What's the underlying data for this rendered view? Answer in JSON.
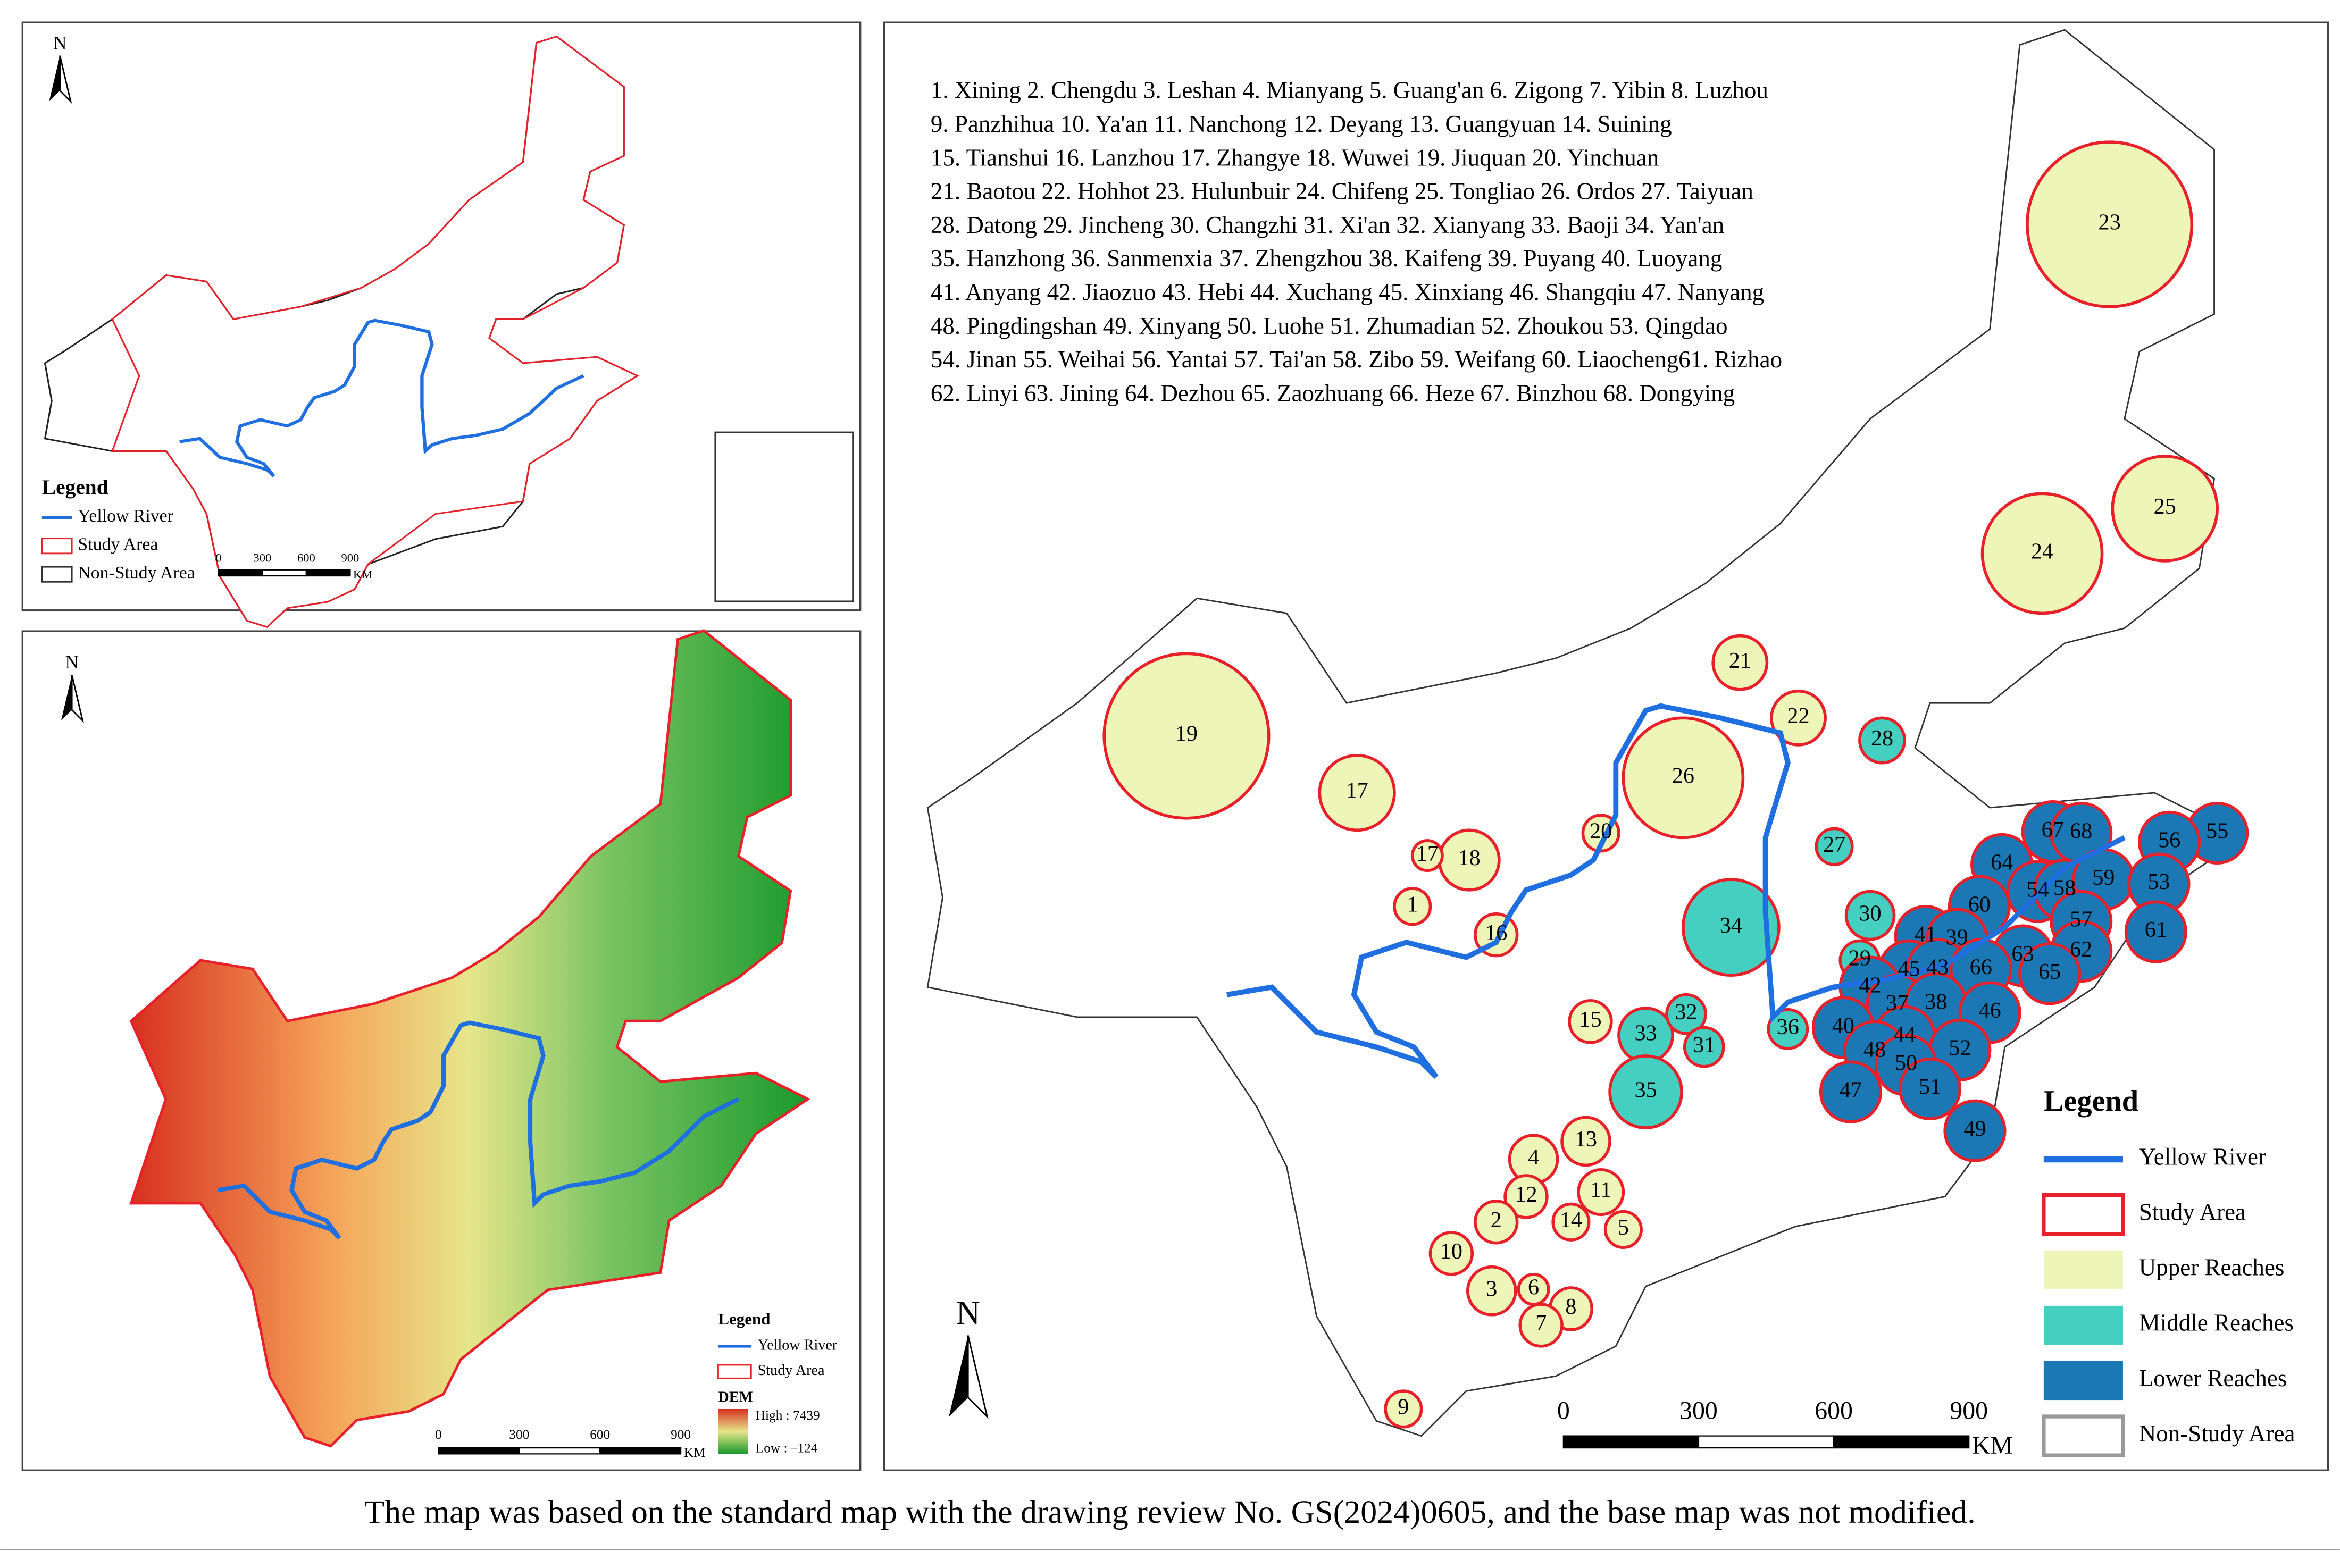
{
  "caption": "The map was based on the standard map with the drawing review No. GS(2024)0605, and the base map was not modified.",
  "overview": {
    "north": "N",
    "legend": {
      "title": "Legend",
      "items": [
        {
          "label": "Yellow River",
          "symbol": "line",
          "color": "#1f6fe0"
        },
        {
          "label": "Study Area",
          "symbol": "outline",
          "color": "#e8202a"
        },
        {
          "label": "Non-Study Area",
          "symbol": "outline",
          "color": "#333333"
        }
      ]
    },
    "scale": {
      "ticks": [
        0,
        300,
        600,
        900
      ],
      "unit": "KM"
    }
  },
  "dem": {
    "north": "N",
    "legend": {
      "title": "Legend",
      "items": [
        {
          "label": "Yellow River",
          "symbol": "line",
          "color": "#1f6fe0"
        },
        {
          "label": "Study Area",
          "symbol": "outline",
          "color": "#e8202a"
        }
      ]
    },
    "dem_legend": {
      "title": "DEM",
      "high": "High : 7439",
      "low": "Low : –124"
    },
    "scale": {
      "ticks": [
        0,
        300,
        600,
        900
      ],
      "unit": "KM"
    }
  },
  "reaches": {
    "north": "N",
    "city_list": [
      "1. Xining 2. Chengdu 3. Leshan 4. Mianyang 5. Guang'an 6. Zigong 7. Yibin 8. Luzhou",
      "9. Panzhihua 10. Ya'an 11. Nanchong 12. Deyang 13. Guangyuan 14. Suining",
      "15. Tianshui  16. Lanzhou 17. Zhangye 18. Wuwei 19. Jiuquan 20. Yinchuan",
      "21. Baotou 22. Hohhot 23. Hulunbuir 24. Chifeng 25. Tongliao 26. Ordos 27. Taiyuan",
      "28. Datong 29. Jincheng 30. Changzhi 31. Xi'an 32. Xianyang 33. Baoji 34. Yan'an",
      "35. Hanzhong  36. Sanmenxia 37. Zhengzhou 38. Kaifeng 39. Puyang 40. Luoyang",
      "41. Anyang 42. Jiaozuo 43. Hebi 44. Xuchang 45. Xinxiang 46. Shangqiu 47. Nanyang",
      "48. Pingdingshan 49. Xinyang 50. Luohe 51. Zhumadian 52. Zhoukou 53. Qingdao",
      "54. Jinan 55. Weihai 56. Yantai 57. Tai'an 58. Zibo 59. Weifang 60. Liaocheng61. Rizhao",
      "62. Linyi 63. Jining 64. Dezhou 65. Zaozhuang 66. Heze 67. Binzhou 68. Dongying"
    ],
    "legend": {
      "title": "Legend",
      "items": [
        {
          "label": "Yellow River",
          "symbol": "line",
          "color": "#1f6fe0"
        },
        {
          "label": "Study Area",
          "symbol": "outline",
          "color": "#e8202a"
        },
        {
          "label": "Upper Reaches",
          "symbol": "fill",
          "color": "#eef5b8"
        },
        {
          "label": "Middle Reaches",
          "symbol": "fill",
          "color": "#45cfc1"
        },
        {
          "label": "Lower Reaches",
          "symbol": "fill",
          "color": "#1b78b5"
        },
        {
          "label": "Non-Study Area",
          "symbol": "outline",
          "color": "#999999"
        }
      ]
    },
    "scale": {
      "ticks": [
        0,
        300,
        600,
        900
      ],
      "unit": "KM"
    },
    "regions": [
      {
        "label": "23",
        "color": "#eef5b8"
      },
      {
        "label": "24",
        "color": "#eef5b8"
      },
      {
        "label": "25",
        "color": "#eef5b8"
      },
      {
        "label": "19",
        "color": "#eef5b8"
      },
      {
        "label": "17",
        "color": "#eef5b8"
      },
      {
        "label": "21",
        "color": "#eef5b8"
      },
      {
        "label": "22",
        "color": "#eef5b8"
      },
      {
        "label": "26",
        "color": "#eef5b8"
      },
      {
        "label": "20",
        "color": "#eef5b8"
      },
      {
        "label": "18",
        "color": "#eef5b8"
      },
      {
        "label": "17",
        "color": "#eef5b8"
      },
      {
        "label": "1",
        "color": "#eef5b8"
      },
      {
        "label": "16",
        "color": "#eef5b8"
      },
      {
        "label": "15",
        "color": "#eef5b8"
      },
      {
        "label": "13",
        "color": "#eef5b8"
      },
      {
        "label": "4",
        "color": "#eef5b8"
      },
      {
        "label": "11",
        "color": "#eef5b8"
      },
      {
        "label": "12",
        "color": "#eef5b8"
      },
      {
        "label": "2",
        "color": "#eef5b8"
      },
      {
        "label": "14",
        "color": "#eef5b8"
      },
      {
        "label": "5",
        "color": "#eef5b8"
      },
      {
        "label": "10",
        "color": "#eef5b8"
      },
      {
        "label": "3",
        "color": "#eef5b8"
      },
      {
        "label": "6",
        "color": "#eef5b8"
      },
      {
        "label": "8",
        "color": "#eef5b8"
      },
      {
        "label": "7",
        "color": "#eef5b8"
      },
      {
        "label": "9",
        "color": "#eef5b8"
      },
      {
        "label": "28",
        "color": "#45cfc1"
      },
      {
        "label": "27",
        "color": "#45cfc1"
      },
      {
        "label": "34",
        "color": "#45cfc1"
      },
      {
        "label": "30",
        "color": "#45cfc1"
      },
      {
        "label": "29",
        "color": "#45cfc1"
      },
      {
        "label": "33",
        "color": "#45cfc1"
      },
      {
        "label": "32",
        "color": "#45cfc1"
      },
      {
        "label": "31",
        "color": "#45cfc1"
      },
      {
        "label": "36",
        "color": "#45cfc1"
      },
      {
        "label": "35",
        "color": "#45cfc1"
      },
      {
        "label": "67",
        "color": "#1b78b5"
      },
      {
        "label": "68",
        "color": "#1b78b5"
      },
      {
        "label": "55",
        "color": "#1b78b5"
      },
      {
        "label": "56",
        "color": "#1b78b5"
      },
      {
        "label": "64",
        "color": "#1b78b5"
      },
      {
        "label": "54",
        "color": "#1b78b5"
      },
      {
        "label": "58",
        "color": "#1b78b5"
      },
      {
        "label": "59",
        "color": "#1b78b5"
      },
      {
        "label": "53",
        "color": "#1b78b5"
      },
      {
        "label": "60",
        "color": "#1b78b5"
      },
      {
        "label": "57",
        "color": "#1b78b5"
      },
      {
        "label": "41",
        "color": "#1b78b5"
      },
      {
        "label": "39",
        "color": "#1b78b5"
      },
      {
        "label": "61",
        "color": "#1b78b5"
      },
      {
        "label": "63",
        "color": "#1b78b5"
      },
      {
        "label": "62",
        "color": "#1b78b5"
      },
      {
        "label": "45",
        "color": "#1b78b5"
      },
      {
        "label": "43",
        "color": "#1b78b5"
      },
      {
        "label": "66",
        "color": "#1b78b5"
      },
      {
        "label": "65",
        "color": "#1b78b5"
      },
      {
        "label": "42",
        "color": "#1b78b5"
      },
      {
        "label": "37",
        "color": "#1b78b5"
      },
      {
        "label": "38",
        "color": "#1b78b5"
      },
      {
        "label": "46",
        "color": "#1b78b5"
      },
      {
        "label": "40",
        "color": "#1b78b5"
      },
      {
        "label": "44",
        "color": "#1b78b5"
      },
      {
        "label": "52",
        "color": "#1b78b5"
      },
      {
        "label": "48",
        "color": "#1b78b5"
      },
      {
        "label": "50",
        "color": "#1b78b5"
      },
      {
        "label": "47",
        "color": "#1b78b5"
      },
      {
        "label": "51",
        "color": "#1b78b5"
      },
      {
        "label": "49",
        "color": "#1b78b5"
      }
    ]
  }
}
